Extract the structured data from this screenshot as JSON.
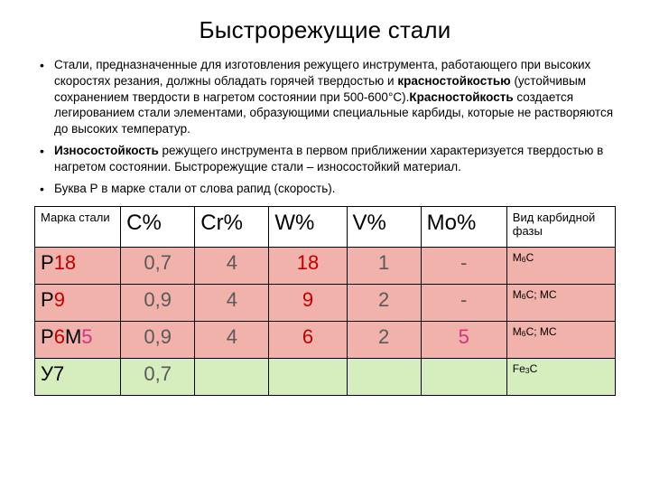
{
  "title": "Быстрорежущие стали",
  "bullets": {
    "b1a": "Стали, предназначенные для изготовления режущего инструмента, работающего при высоких скоростях резания, должны обладать горячей твердостью и ",
    "b1em1": "красностойкостью",
    "b1b": " (устойчивым сохранением твердости в нагретом состоянии при 500-600°С).",
    "b1em2": "Красностойкость",
    "b1c": " создается легированием стали элементами, образующими специальные карбиды, которые не растворяются до высоких температур.",
    "b2em": "Износостойкость",
    "b2": " режущего инструмента в первом приближении характеризуется твердостью в нагретом состоянии. Быстрорежущие стали – износостойкий материал.",
    "b3": "Буква Р в марке стали от слова рапид (скорость)."
  },
  "table": {
    "headers": {
      "h1": "Марка стали",
      "h2": "C%",
      "h3": "Cr%",
      "h4": "W%",
      "h5": "V%",
      "h6": "Mo%",
      "h7": "Вид карбидной фазы"
    },
    "rows": [
      {
        "bg": "pink",
        "grade": {
          "parts": [
            [
              "Р",
              "black"
            ],
            [
              "18",
              "red"
            ]
          ]
        },
        "c": "0,7",
        "cr": "4",
        "w": "18",
        "w_color": "red",
        "v": "1",
        "mo": "-",
        "mo_color": "grey",
        "phase_pre": "М",
        "phase_sub": "6",
        "phase_post": "С"
      },
      {
        "bg": "pink",
        "grade": {
          "parts": [
            [
              "Р",
              "black"
            ],
            [
              "9",
              "red"
            ]
          ]
        },
        "c": "0,9",
        "cr": "4",
        "w": "9",
        "w_color": "red",
        "v": "2",
        "mo": "-",
        "mo_color": "grey",
        "phase_pre": "М",
        "phase_sub": "6",
        "phase_post": "С; МС"
      },
      {
        "bg": "pink",
        "grade": {
          "parts": [
            [
              "Р",
              "black"
            ],
            [
              "6",
              "red"
            ],
            [
              "М",
              "black"
            ],
            [
              "5",
              "mag"
            ]
          ]
        },
        "c": "0,9",
        "cr": "4",
        "w": "6",
        "w_color": "red",
        "v": "2",
        "mo": "5",
        "mo_color": "mag",
        "phase_pre": "М",
        "phase_sub": "6",
        "phase_post": "С; МС"
      },
      {
        "bg": "green",
        "grade": {
          "parts": [
            [
              "У7",
              "black"
            ]
          ]
        },
        "c": "0,7",
        "cr": "",
        "w": "",
        "w_color": "grey",
        "v": "",
        "mo": "",
        "mo_color": "grey",
        "phase_pre": "Fe",
        "phase_sub": "3",
        "phase_post": "C"
      }
    ]
  }
}
